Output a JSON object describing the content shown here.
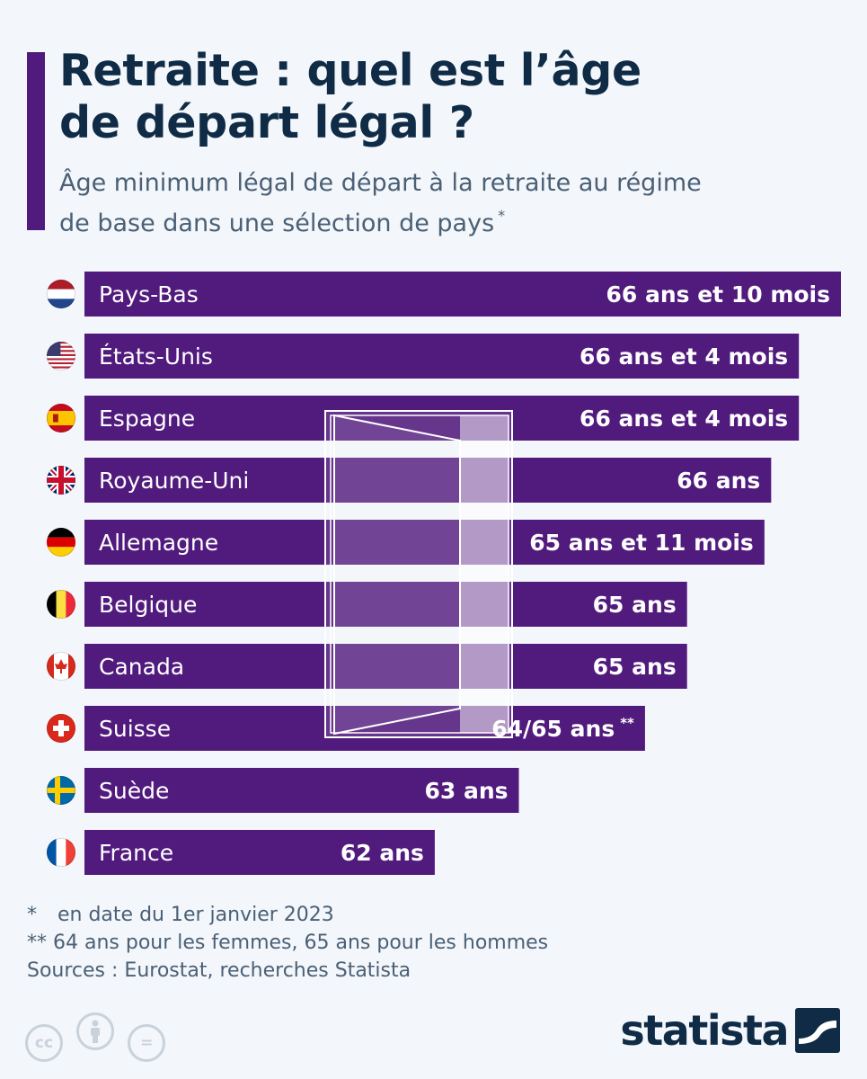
{
  "title_line1": "Retraite : quel est l’âge",
  "title_line2": "de départ légal ?",
  "subtitle_line1": "Âge minimum légal de départ à la retraite au régime",
  "subtitle_line2": "de base dans une sélection de pays",
  "subtitle_mark": "*",
  "colors": {
    "bar": "#511a7d",
    "accent": "#511a7d",
    "title": "#0f2b46",
    "text": "#4a6076"
  },
  "chart_data": {
    "type": "bar",
    "orientation": "horizontal",
    "categories": [
      "Pays-Bas",
      "États-Unis",
      "Espagne",
      "Royaume-Uni",
      "Allemagne",
      "Belgique",
      "Canada",
      "Suisse",
      "Suède",
      "France"
    ],
    "values": [
      66.83,
      66.33,
      66.33,
      66.0,
      65.92,
      65.0,
      65.0,
      64.5,
      63.0,
      62.0
    ],
    "value_labels": [
      "66 ans et 10 mois",
      "66 ans et 4 mois",
      "66 ans et 4 mois",
      "66 ans",
      "65 ans et 11 mois",
      "65 ans",
      "65 ans",
      "64/65 ans",
      "63 ans",
      "62 ans"
    ],
    "value_label_marks": [
      "",
      "",
      "",
      "",
      "",
      "",
      "",
      "**",
      "",
      ""
    ],
    "flags": [
      "nl",
      "us",
      "es",
      "gb",
      "de",
      "be",
      "ca",
      "ch",
      "se",
      "fr"
    ],
    "unit": "ans"
  },
  "notes": [
    {
      "mark": "*",
      "text": "en date du 1er janvier 2023"
    },
    {
      "mark": "**",
      "text": "64 ans pour les femmes, 65 ans pour les hommes"
    }
  ],
  "sources": "Sources : Eurostat, recherches Statista",
  "cc_icons": [
    "cc-icon",
    "by-icon",
    "nd-icon"
  ],
  "cc_icon_text": [
    "cc",
    "",
    "="
  ],
  "brand": "statista"
}
